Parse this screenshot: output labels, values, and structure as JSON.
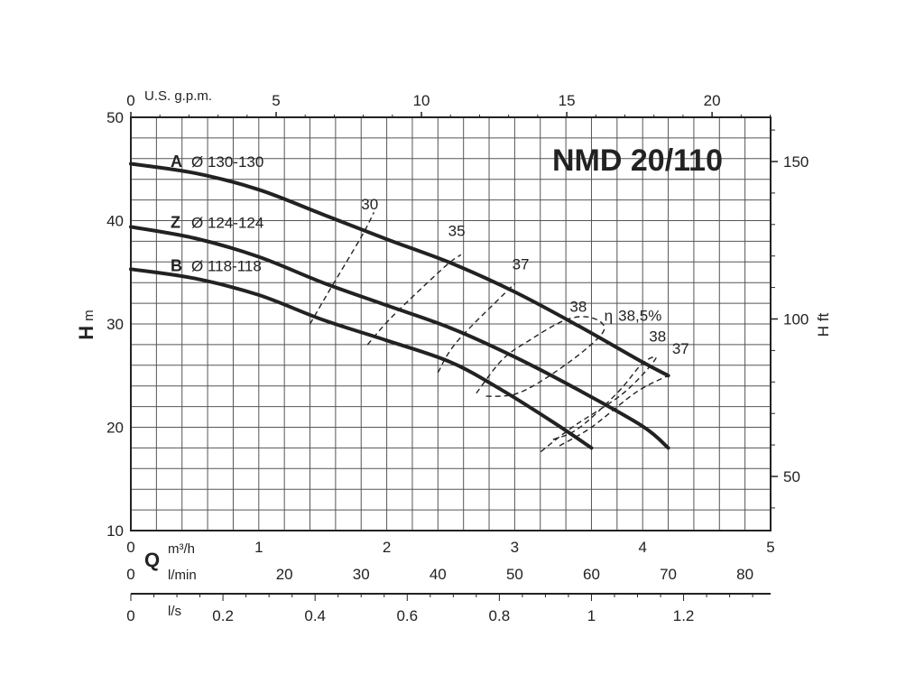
{
  "chart_data": {
    "type": "line",
    "title": "NMD 20/110",
    "x_primary": {
      "symbol": "Q",
      "unit": "m³/h",
      "ticks": [
        "0",
        "1",
        "2",
        "3",
        "4",
        "5"
      ],
      "range": [
        0,
        5
      ]
    },
    "x_lmin": {
      "unit": "l/min",
      "ticks": [
        "0",
        "20",
        "30",
        "40",
        "50",
        "60",
        "70",
        "80"
      ],
      "values": [
        0,
        20,
        30,
        40,
        50,
        60,
        70,
        80
      ]
    },
    "x_ls": {
      "unit": "l/s",
      "ticks": [
        "0",
        "0.2",
        "0.4",
        "0.6",
        "0.8",
        "1",
        "1.2"
      ],
      "values": [
        0,
        0.2,
        0.4,
        0.6,
        0.8,
        1,
        1.2
      ]
    },
    "x_top": {
      "unit": "U.S. g.p.m.",
      "ticks": [
        "0",
        "5",
        "10",
        "15",
        "20"
      ],
      "values": [
        0,
        5,
        10,
        15,
        20
      ]
    },
    "y_left": {
      "symbol": "H",
      "unit": "m",
      "ticks": [
        "10",
        "20",
        "30",
        "40",
        "50"
      ],
      "range": [
        10,
        50
      ]
    },
    "y_right": {
      "label": "H ft",
      "ticks": [
        "50",
        "100",
        "150"
      ],
      "values": [
        50,
        100,
        150
      ]
    },
    "grid": true,
    "series": [
      {
        "name": "A",
        "diameter": "Ø 130-130",
        "x": [
          0,
          0.5,
          1.0,
          1.5,
          2.0,
          2.5,
          3.0,
          3.5,
          4.0,
          4.2
        ],
        "y": [
          45.5,
          44.6,
          43.0,
          40.6,
          38.2,
          35.9,
          33.1,
          29.8,
          26.3,
          25.0
        ]
      },
      {
        "name": "Z",
        "diameter": "Ø 124-124",
        "x": [
          0,
          0.5,
          1.0,
          1.5,
          2.0,
          2.5,
          3.0,
          3.5,
          4.0,
          4.2
        ],
        "y": [
          39.4,
          38.3,
          36.5,
          34.0,
          31.8,
          29.6,
          26.8,
          23.6,
          20.1,
          18.0
        ]
      },
      {
        "name": "B",
        "diameter": "Ø 118-118",
        "x": [
          0,
          0.5,
          1.0,
          1.5,
          2.0,
          2.5,
          2.9,
          3.3,
          3.6
        ],
        "y": [
          35.3,
          34.4,
          32.8,
          30.4,
          28.4,
          26.3,
          23.6,
          20.5,
          18.0
        ]
      }
    ],
    "efficiency": {
      "symbol": "η",
      "curves": [
        {
          "label": "30",
          "x": [
            1.4,
            1.55,
            1.8,
            1.9
          ],
          "y": [
            30.0,
            33.2,
            38.4,
            40.8
          ]
        },
        {
          "label": "35",
          "x": [
            1.85,
            2.05,
            2.45,
            2.58
          ],
          "y": [
            28.0,
            30.8,
            35.5,
            36.7
          ]
        },
        {
          "label": "37",
          "x": [
            2.4,
            2.55,
            2.95,
            3.0
          ],
          "y": [
            25.3,
            28.3,
            33.3,
            33.8
          ]
        },
        {
          "label": "38,5%",
          "x": [
            2.7,
            2.9,
            3.1,
            3.4,
            3.6,
            3.7,
            3.55,
            3.25,
            3.0,
            2.75
          ],
          "y": [
            23.3,
            26.5,
            28.3,
            30.4,
            30.6,
            29.5,
            27.5,
            24.8,
            23.2,
            23.0
          ]
        },
        {
          "label": "38",
          "x": [
            3.3,
            3.5,
            3.8,
            4.0,
            4.1,
            3.85,
            3.45,
            3.2
          ],
          "y": [
            18.8,
            19.9,
            23.3,
            26.2,
            26.6,
            23.3,
            20.0,
            17.6
          ]
        },
        {
          "label": "37",
          "x": [
            3.35,
            3.6,
            3.95,
            4.2
          ],
          "y": [
            18.2,
            20.0,
            23.4,
            25.0
          ]
        }
      ],
      "labels": [
        "30",
        "35",
        "37",
        "38",
        "38,5%",
        "38",
        "37"
      ]
    }
  }
}
